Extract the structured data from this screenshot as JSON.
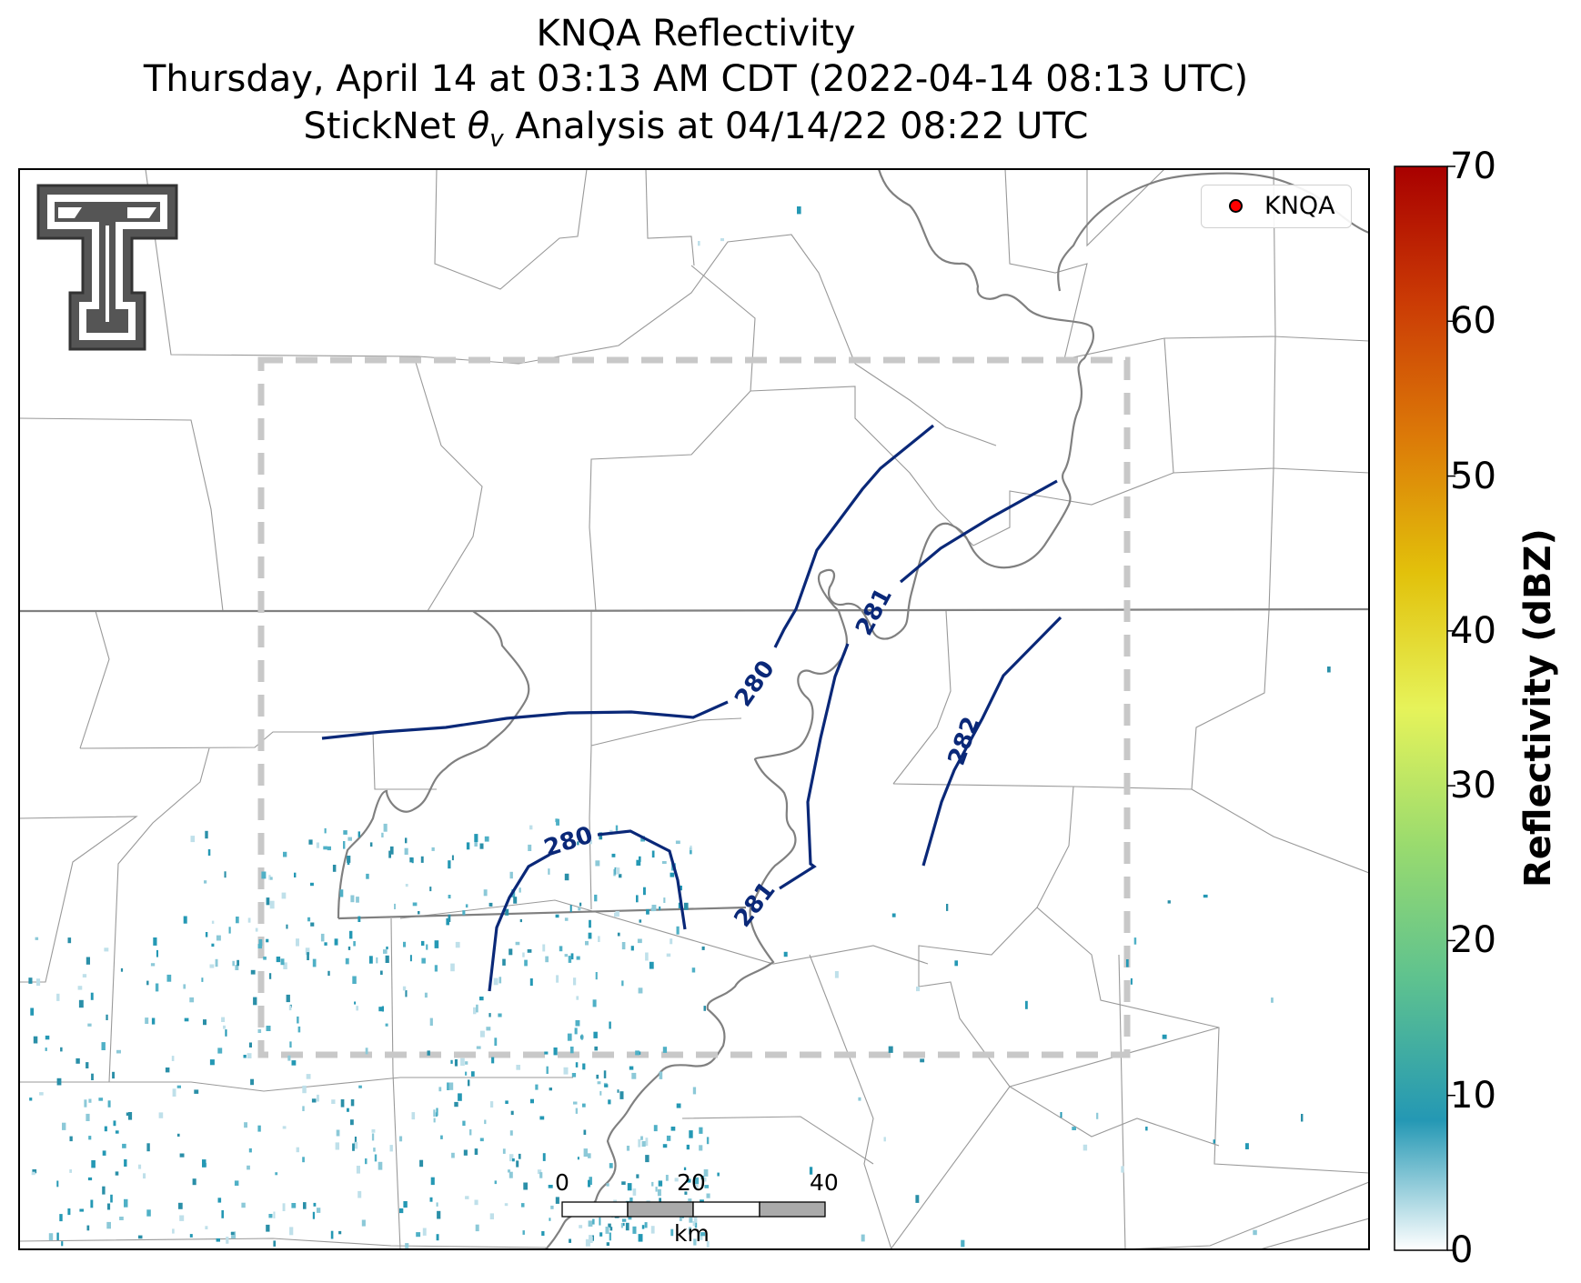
{
  "title": {
    "line1": "KNQA Reflectivity",
    "line2": "Thursday, April 14 at 03:13 AM CDT (2022-04-14 08:13 UTC)",
    "line3_prefix": "StickNet ",
    "line3_symbol": "θ",
    "line3_subscript": "v",
    "line3_suffix": " Analysis at 04/14/22 08:22 UTC"
  },
  "legend": {
    "label": "KNQA",
    "marker_color": "#ff0000"
  },
  "logo": {
    "name": "texas-tech-double-t-logo",
    "color": "#555555"
  },
  "colorbar": {
    "label": "Reflectivity (dBZ)",
    "min": 0,
    "max": 70,
    "ticks": [
      "0",
      "10",
      "20",
      "30",
      "40",
      "50",
      "60",
      "70"
    ],
    "colors": [
      "#ffffff",
      "#2498b4",
      "#5ec28f",
      "#9adb6e",
      "#e6f35a",
      "#e2c10b",
      "#dc7a08",
      "#cb3b05",
      "#a80000"
    ]
  },
  "contours": {
    "color": "#0a2878",
    "labels": [
      "280",
      "280",
      "281",
      "281",
      "282"
    ]
  },
  "scale_bar": {
    "labels": [
      "0",
      "20",
      "40"
    ],
    "unit": "km"
  },
  "colors": {
    "analysis_box": "#c8c8c8",
    "river": "#808080",
    "county_lines": "#999999",
    "state_line": "#808080"
  }
}
